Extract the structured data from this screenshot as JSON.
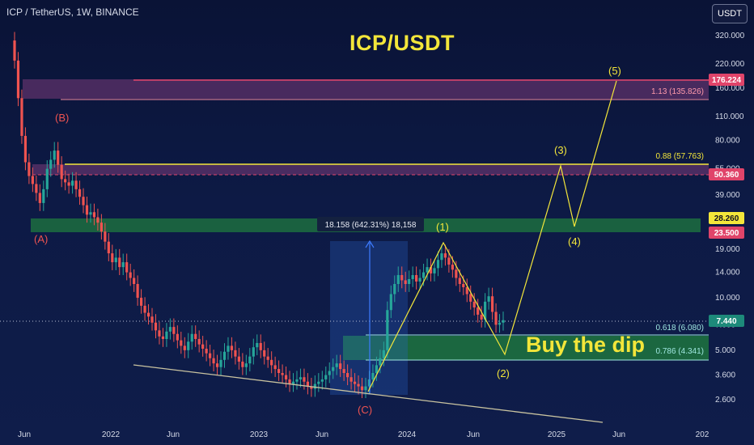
{
  "header": {
    "symbol_info": "ICP / TetherUS, 1W, BINANCE",
    "currency_button": "USDT"
  },
  "title": "ICP/USDT",
  "annotations": {
    "buy_the_dip": "Buy the dip",
    "measure_label": "18.158 (642.31%) 18,158",
    "fib_1_13": "1.13 (135.826)",
    "fib_0_88": "0.88 (57.763)",
    "fib_0_618": "0.618 (6.080)",
    "fib_0_786": "0.786 (4.341)",
    "wave_labels": {
      "A": "(A)",
      "B": "(B)",
      "C": "(C)",
      "w1": "(1)",
      "w2": "(2)",
      "w3": "(3)",
      "w4": "(4)",
      "w5": "(5)"
    }
  },
  "price_badges": {
    "p176": "176.224",
    "p50": "50.360",
    "p28": "28.260",
    "p23": "23.500",
    "p7": "7.440"
  },
  "chart_data": {
    "type": "candlestick",
    "scale": "log",
    "y_ticks": [
      "320.000",
      "220.000",
      "160.000",
      "110.000",
      "80.000",
      "55.000",
      "39.000",
      "28.000",
      "19.000",
      "14.000",
      "10.000",
      "7.000",
      "5.000",
      "3.600",
      "2.600"
    ],
    "x_ticks": [
      "Jun",
      "2022",
      "Jun",
      "2023",
      "Jun",
      "2024",
      "Jun",
      "2025",
      "Jun",
      "202"
    ],
    "closes": [
      230,
      140,
      85,
      60,
      50,
      45,
      40,
      35,
      42,
      55,
      62,
      70,
      58,
      48,
      46,
      44,
      47,
      42,
      38,
      34,
      30,
      31,
      29,
      27,
      24,
      21,
      18,
      16,
      17,
      15,
      16,
      14,
      13,
      12,
      10,
      9,
      8.2,
      7.8,
      7.2,
      6.5,
      6.0,
      5.8,
      6.4,
      6.8,
      6.2,
      5.7,
      5.3,
      5.0,
      5.6,
      6.2,
      5.8,
      5.4,
      5.1,
      4.8,
      4.5,
      4.2,
      4.0,
      4.4,
      4.9,
      5.3,
      5.0,
      4.6,
      4.3,
      4.0,
      4.2,
      4.6,
      5.2,
      5.5,
      5.0,
      4.6,
      4.4,
      4.1,
      3.9,
      3.7,
      3.6,
      3.4,
      3.2,
      3.3,
      3.4,
      3.5,
      3.3,
      3.1,
      3.0,
      3.2,
      3.3,
      3.4,
      3.6,
      3.8,
      4.0,
      4.2,
      3.9,
      3.7,
      3.5,
      3.3,
      3.2,
      3.1,
      2.95,
      3.1,
      3.4,
      3.7,
      4.1,
      4.5,
      5.0,
      8.5,
      10.5,
      12.0,
      13.5,
      12.6,
      12.0,
      12.8,
      13.5,
      12.4,
      13.0,
      14.0,
      15.0,
      13.8,
      14.8,
      16.5,
      18.0,
      17.0,
      15.5,
      14.5,
      13.0,
      12.0,
      11.5,
      10.5,
      9.5,
      8.8,
      8.0,
      7.5,
      9.5,
      10.2,
      8.3,
      7.0,
      7.2,
      7.44
    ],
    "colors": {
      "up": "#26a69a",
      "down": "#ef5350"
    }
  }
}
